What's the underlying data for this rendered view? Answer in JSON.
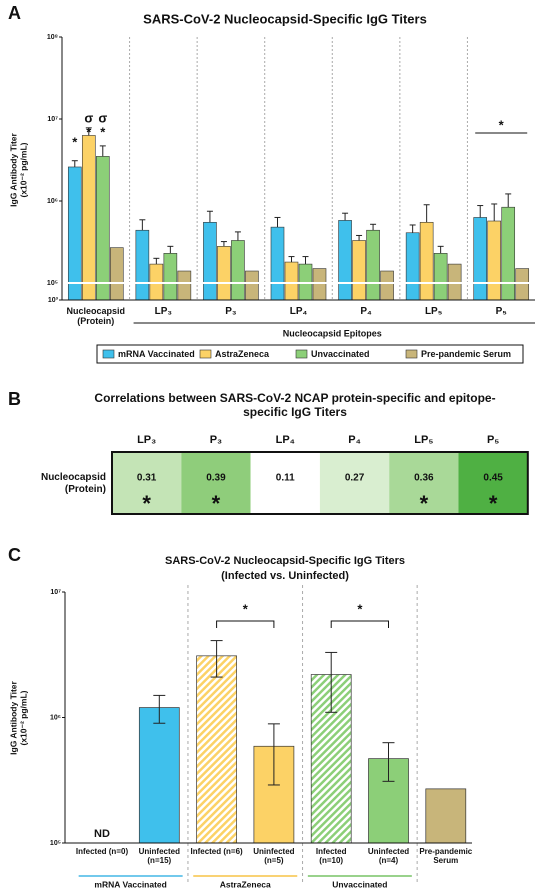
{
  "panels": [
    "A",
    "B",
    "C"
  ],
  "chart_data": [
    {
      "type": "bar",
      "title": "SARS-CoV-2 Nucleocapsid-Specific IgG Titers",
      "ylabel": [
        "IgG Antibody Titer",
        "(x10⁻² pg/mL)"
      ],
      "categories": [
        "Nucleocapsid (Protein)",
        "LP₃",
        "P₃",
        "LP₄",
        "P₄",
        "LP₅",
        "P₅"
      ],
      "group_label": "Nucleocapsid Epitopes",
      "series": [
        {
          "name": "mRNA Vaccinated",
          "color": "#3fc0ec",
          "values": [
            2600000,
            440000,
            550000,
            480000,
            580000,
            410000,
            630000
          ],
          "errors": [
            500000,
            150000,
            200000,
            150000,
            130000,
            100000,
            250000
          ]
        },
        {
          "name": "AstraZeneca",
          "color": "#fcd266",
          "values": [
            6300000,
            170000,
            280000,
            180000,
            330000,
            550000,
            570000
          ],
          "errors": [
            1500000,
            30000,
            40000,
            30000,
            50000,
            350000,
            350000
          ]
        },
        {
          "name": "Unvaccinated",
          "color": "#8ccf78",
          "values": [
            3500000,
            230000,
            330000,
            170000,
            440000,
            230000,
            840000
          ],
          "errors": [
            1200000,
            50000,
            90000,
            40000,
            80000,
            50000,
            380000
          ]
        },
        {
          "name": "Pre-pandemic Serum",
          "color": "#c8b57a",
          "values": [
            270000,
            140000,
            140000,
            150000,
            140000,
            170000,
            150000
          ],
          "errors": [
            null,
            null,
            null,
            null,
            null,
            null,
            null
          ]
        }
      ],
      "log": true,
      "axis_break": true,
      "ylim": [
        1000,
        100000000
      ],
      "yticks": [
        {
          "value": 1000,
          "label": "10³"
        },
        {
          "value": 100000,
          "label": "10⁵"
        },
        {
          "value": 1000000,
          "label": "10⁶"
        },
        {
          "value": 10000000,
          "label": "10⁷"
        },
        {
          "value": 100000000,
          "label": "10⁸"
        }
      ],
      "annotations": [
        "*",
        "σ",
        "*",
        "σ",
        "*",
        "*"
      ]
    },
    {
      "type": "heatmap",
      "title": "Correlations between SARS-CoV-2 NCAP protein-specific and epitope-specific IgG Titers",
      "columns": [
        "LP₃",
        "P₃",
        "LP₄",
        "P₄",
        "LP₅",
        "P₅"
      ],
      "row": "Nucleocapsid (Protein)",
      "values": [
        0.31,
        0.39,
        0.11,
        0.27,
        0.36,
        0.45
      ],
      "colors": [
        "#c4e4b6",
        "#8fcd7b",
        "#ffffff",
        "#d9eed0",
        "#a9d998",
        "#4fb043"
      ],
      "significance": [
        "*",
        "*",
        null,
        null,
        "*",
        "*"
      ]
    },
    {
      "type": "bar",
      "title": [
        "SARS-CoV-2 Nucleocapsid-Specific IgG Titers",
        "(Infected vs. Uninfected)"
      ],
      "ylabel": [
        "IgG Antibody Titer",
        "(x10⁻² pg/mL)"
      ],
      "categories": [
        "Infected (n=0)",
        "Uninfected (n=15)",
        "Infected (n=6)",
        "Uninfected (n=5)",
        "Infected (n=10)",
        "Uninfected (n=4)",
        "Pre-pandemic Serum"
      ],
      "values": [
        null,
        1200000,
        3100000,
        590000,
        2200000,
        470000,
        270000
      ],
      "value_labels": [
        "ND",
        null,
        null,
        null,
        null,
        null,
        null
      ],
      "errors": [
        null,
        300000,
        1000000,
        300000,
        1100000,
        160000,
        null
      ],
      "colors": [
        "#3fc0ec",
        "#3fc0ec",
        "#fcd266",
        "#fcd266",
        "#8ccf78",
        "#8ccf78",
        "#c8b57a"
      ],
      "hatched": [
        false,
        false,
        true,
        false,
        true,
        false,
        false
      ],
      "groups": [
        {
          "name": "mRNA Vaccinated",
          "color": "#1ea9e0"
        },
        {
          "name": "AstraZeneca",
          "color": "#f5b820"
        },
        {
          "name": "Unvaccinated",
          "color": "#5cb648"
        }
      ],
      "log": true,
      "ylim": [
        100000,
        10000000
      ],
      "yticks": [
        {
          "value": 100000,
          "label": "10⁵"
        },
        {
          "value": 1000000,
          "label": "10⁶"
        },
        {
          "value": 10000000,
          "label": "10⁷"
        }
      ],
      "annotations": [
        "*",
        "*"
      ]
    }
  ]
}
